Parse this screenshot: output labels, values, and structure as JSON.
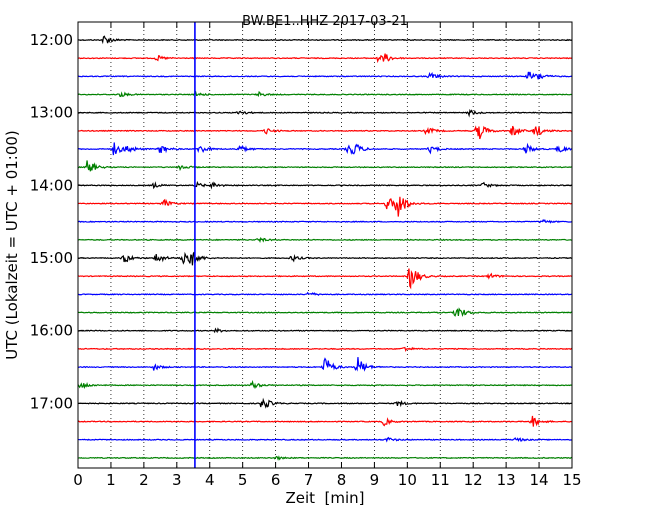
{
  "chart_data": {
    "type": "line",
    "title": "BW.BE1..HHZ 2017-03-21",
    "xlabel": "Zeit  [min]",
    "ylabel": "UTC (Lokalzeit = UTC + 01:00)",
    "xlim": [
      0,
      15
    ],
    "x_ticks": [
      "0",
      "1",
      "2",
      "3",
      "4",
      "5",
      "6",
      "7",
      "8",
      "9",
      "10",
      "11",
      "12",
      "13",
      "14",
      "15"
    ],
    "y_ticks": [
      {
        "label": "12:00",
        "row": 0
      },
      {
        "label": "13:00",
        "row": 4
      },
      {
        "label": "14:00",
        "row": 8
      },
      {
        "label": "15:00",
        "row": 12
      },
      {
        "label": "16:00",
        "row": 16
      },
      {
        "label": "17:00",
        "row": 20
      }
    ],
    "grid": "vertical dotted",
    "row_interval_minutes": 15,
    "row_colors": [
      "#000000",
      "#ff0000",
      "#0000ff",
      "#008000"
    ],
    "marker_line": {
      "x": 3.55,
      "color": "#0000ff"
    },
    "series": [
      {
        "start": "12:00",
        "events": [
          [
            0.8,
            0.55
          ]
        ]
      },
      {
        "start": "12:15",
        "events": [
          [
            2.4,
            0.3
          ],
          [
            9.1,
            0.35
          ],
          [
            9.3,
            0.45
          ]
        ]
      },
      {
        "start": "12:30",
        "events": [
          [
            10.7,
            0.4
          ],
          [
            13.7,
            0.55
          ],
          [
            14.0,
            0.3
          ]
        ]
      },
      {
        "start": "12:45",
        "events": [
          [
            1.3,
            0.25
          ],
          [
            3.6,
            0.25
          ],
          [
            5.5,
            0.25
          ]
        ]
      },
      {
        "start": "13:00",
        "events": [
          [
            4.9,
            0.3
          ],
          [
            11.9,
            0.3
          ]
        ]
      },
      {
        "start": "13:15",
        "events": [
          [
            5.7,
            0.35
          ],
          [
            10.6,
            0.45
          ],
          [
            12.1,
            0.45
          ],
          [
            12.2,
            0.6
          ],
          [
            13.2,
            0.65
          ],
          [
            13.9,
            0.75
          ]
        ]
      },
      {
        "start": "13:30",
        "events": [
          [
            1.1,
            0.75
          ],
          [
            1.5,
            0.45
          ],
          [
            2.5,
            0.5
          ],
          [
            3.7,
            0.5
          ],
          [
            4.9,
            0.45
          ],
          [
            8.2,
            0.6
          ],
          [
            8.4,
            0.55
          ],
          [
            10.7,
            0.4
          ],
          [
            13.6,
            0.55
          ],
          [
            14.6,
            0.45
          ]
        ]
      },
      {
        "start": "13:45",
        "events": [
          [
            0.3,
            0.85
          ],
          [
            3.1,
            0.35
          ]
        ]
      },
      {
        "start": "14:00",
        "events": [
          [
            2.3,
            0.25
          ],
          [
            3.6,
            0.3
          ],
          [
            4.1,
            0.3
          ],
          [
            12.3,
            0.3
          ]
        ]
      },
      {
        "start": "14:15",
        "events": [
          [
            2.6,
            0.45
          ],
          [
            9.7,
            1.85
          ],
          [
            9.4,
            0.8
          ]
        ]
      },
      {
        "start": "14:30",
        "events": [
          [
            14.1,
            0.25
          ]
        ]
      },
      {
        "start": "14:45",
        "events": [
          [
            5.5,
            0.25
          ]
        ]
      },
      {
        "start": "15:00",
        "events": [
          [
            1.4,
            0.55
          ],
          [
            2.4,
            0.6
          ],
          [
            3.4,
            1.1
          ],
          [
            3.2,
            0.6
          ],
          [
            6.5,
            0.35
          ]
        ]
      },
      {
        "start": "15:15",
        "events": [
          [
            10.1,
            1.6
          ],
          [
            12.5,
            0.3
          ]
        ]
      },
      {
        "start": "15:30",
        "events": [
          [
            7.0,
            0.25
          ]
        ]
      },
      {
        "start": "15:45",
        "events": [
          [
            11.5,
            0.9
          ]
        ]
      },
      {
        "start": "16:00",
        "events": [
          [
            4.2,
            0.2
          ]
        ]
      },
      {
        "start": "16:15",
        "events": [
          [
            9.9,
            0.25
          ]
        ]
      },
      {
        "start": "16:30",
        "events": [
          [
            2.3,
            0.35
          ],
          [
            7.5,
            1.2
          ],
          [
            8.5,
            1.1
          ]
        ]
      },
      {
        "start": "16:45",
        "events": [
          [
            0.1,
            0.45
          ],
          [
            5.3,
            0.4
          ]
        ]
      },
      {
        "start": "17:00",
        "events": [
          [
            5.6,
            0.8
          ],
          [
            9.7,
            0.3
          ]
        ]
      },
      {
        "start": "17:15",
        "events": [
          [
            9.3,
            0.4
          ],
          [
            13.8,
            0.6
          ]
        ]
      },
      {
        "start": "17:30",
        "events": [
          [
            9.4,
            0.25
          ],
          [
            13.3,
            0.25
          ]
        ]
      },
      {
        "start": "17:45",
        "events": [
          [
            6.0,
            0.2
          ]
        ]
      }
    ]
  }
}
